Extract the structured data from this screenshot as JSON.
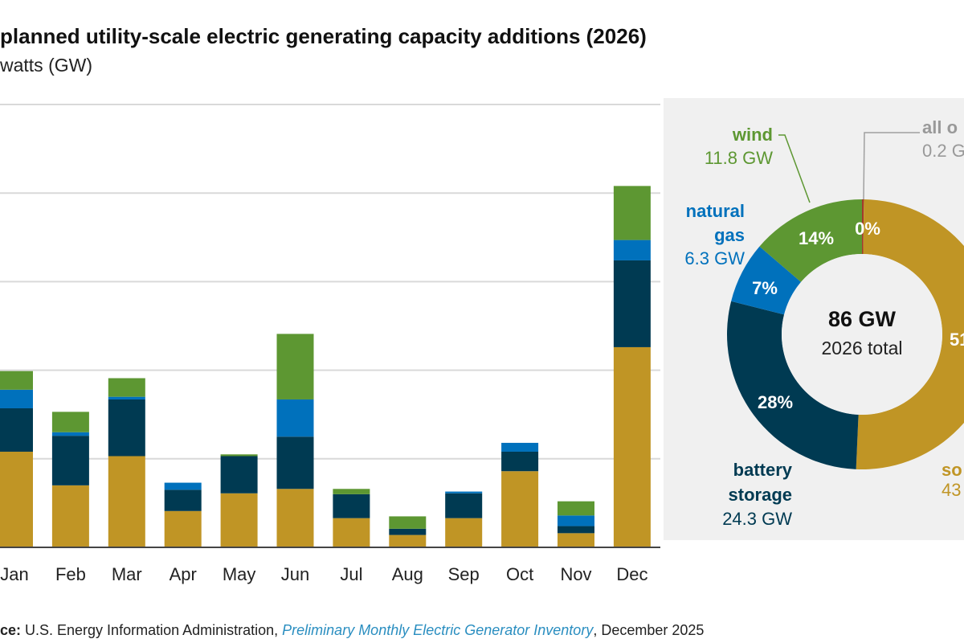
{
  "title": "planned utility-scale electric generating capacity additions (2026)",
  "subtitle": "watts (GW)",
  "source": {
    "prefix": "ce:",
    "text1": " U.S. Energy Information Administration, ",
    "link": "Preliminary Monthly Electric Generator Inventory",
    "text2": ", December 2025"
  },
  "colors": {
    "solar": "#c09525",
    "battery storage": "#003a52",
    "natural gas": "#0071bc",
    "wind": "#5d9732",
    "all other": "#a33a2a",
    "panel": "#f0f0f0"
  },
  "chart_data": [
    {
      "type": "bar",
      "stacked": true,
      "categories": [
        "Jan",
        "Feb",
        "Mar",
        "Apr",
        "May",
        "Jun",
        "Jul",
        "Aug",
        "Sep",
        "Oct",
        "Nov",
        "Dec"
      ],
      "series": [
        {
          "key": "solar",
          "values": [
            5.4,
            3.5,
            5.15,
            2.05,
            3.05,
            3.3,
            1.65,
            0.7,
            1.65,
            4.3,
            0.8,
            11.3
          ]
        },
        {
          "key": "battery storage",
          "values": [
            2.45,
            2.8,
            3.2,
            1.2,
            2.1,
            2.95,
            1.35,
            0.35,
            1.4,
            1.1,
            0.4,
            4.9
          ]
        },
        {
          "key": "natural gas",
          "values": [
            1.05,
            0.2,
            0.15,
            0.4,
            0,
            2.1,
            0,
            0,
            0.1,
            0.5,
            0.6,
            1.15
          ]
        },
        {
          "key": "wind",
          "values": [
            1.05,
            1.15,
            1.05,
            0,
            0.1,
            3.7,
            0.3,
            0.7,
            0,
            0,
            0.8,
            3.05
          ]
        }
      ],
      "ylim": [
        0,
        25
      ],
      "gridlines": [
        5,
        10,
        15,
        20,
        25
      ],
      "grid": true
    },
    {
      "type": "pie",
      "donut": true,
      "center_value": "86 GW",
      "center_label": "2026 total",
      "slices": [
        {
          "key": "all other",
          "name": "all o",
          "value": 0.2,
          "label": "0.2 G",
          "pct": "0%"
        },
        {
          "key": "solar",
          "name": "so",
          "value": 43.4,
          "label": "43",
          "pct": "51"
        },
        {
          "key": "battery storage",
          "name": "battery storage",
          "value": 24.3,
          "label": "24.3 GW",
          "pct": "28%"
        },
        {
          "key": "natural gas",
          "name": "natural gas",
          "value": 6.3,
          "label": "6.3 GW",
          "pct": "7%"
        },
        {
          "key": "wind",
          "name": "wind",
          "value": 11.8,
          "label": "11.8 GW",
          "pct": "14%"
        }
      ]
    }
  ]
}
